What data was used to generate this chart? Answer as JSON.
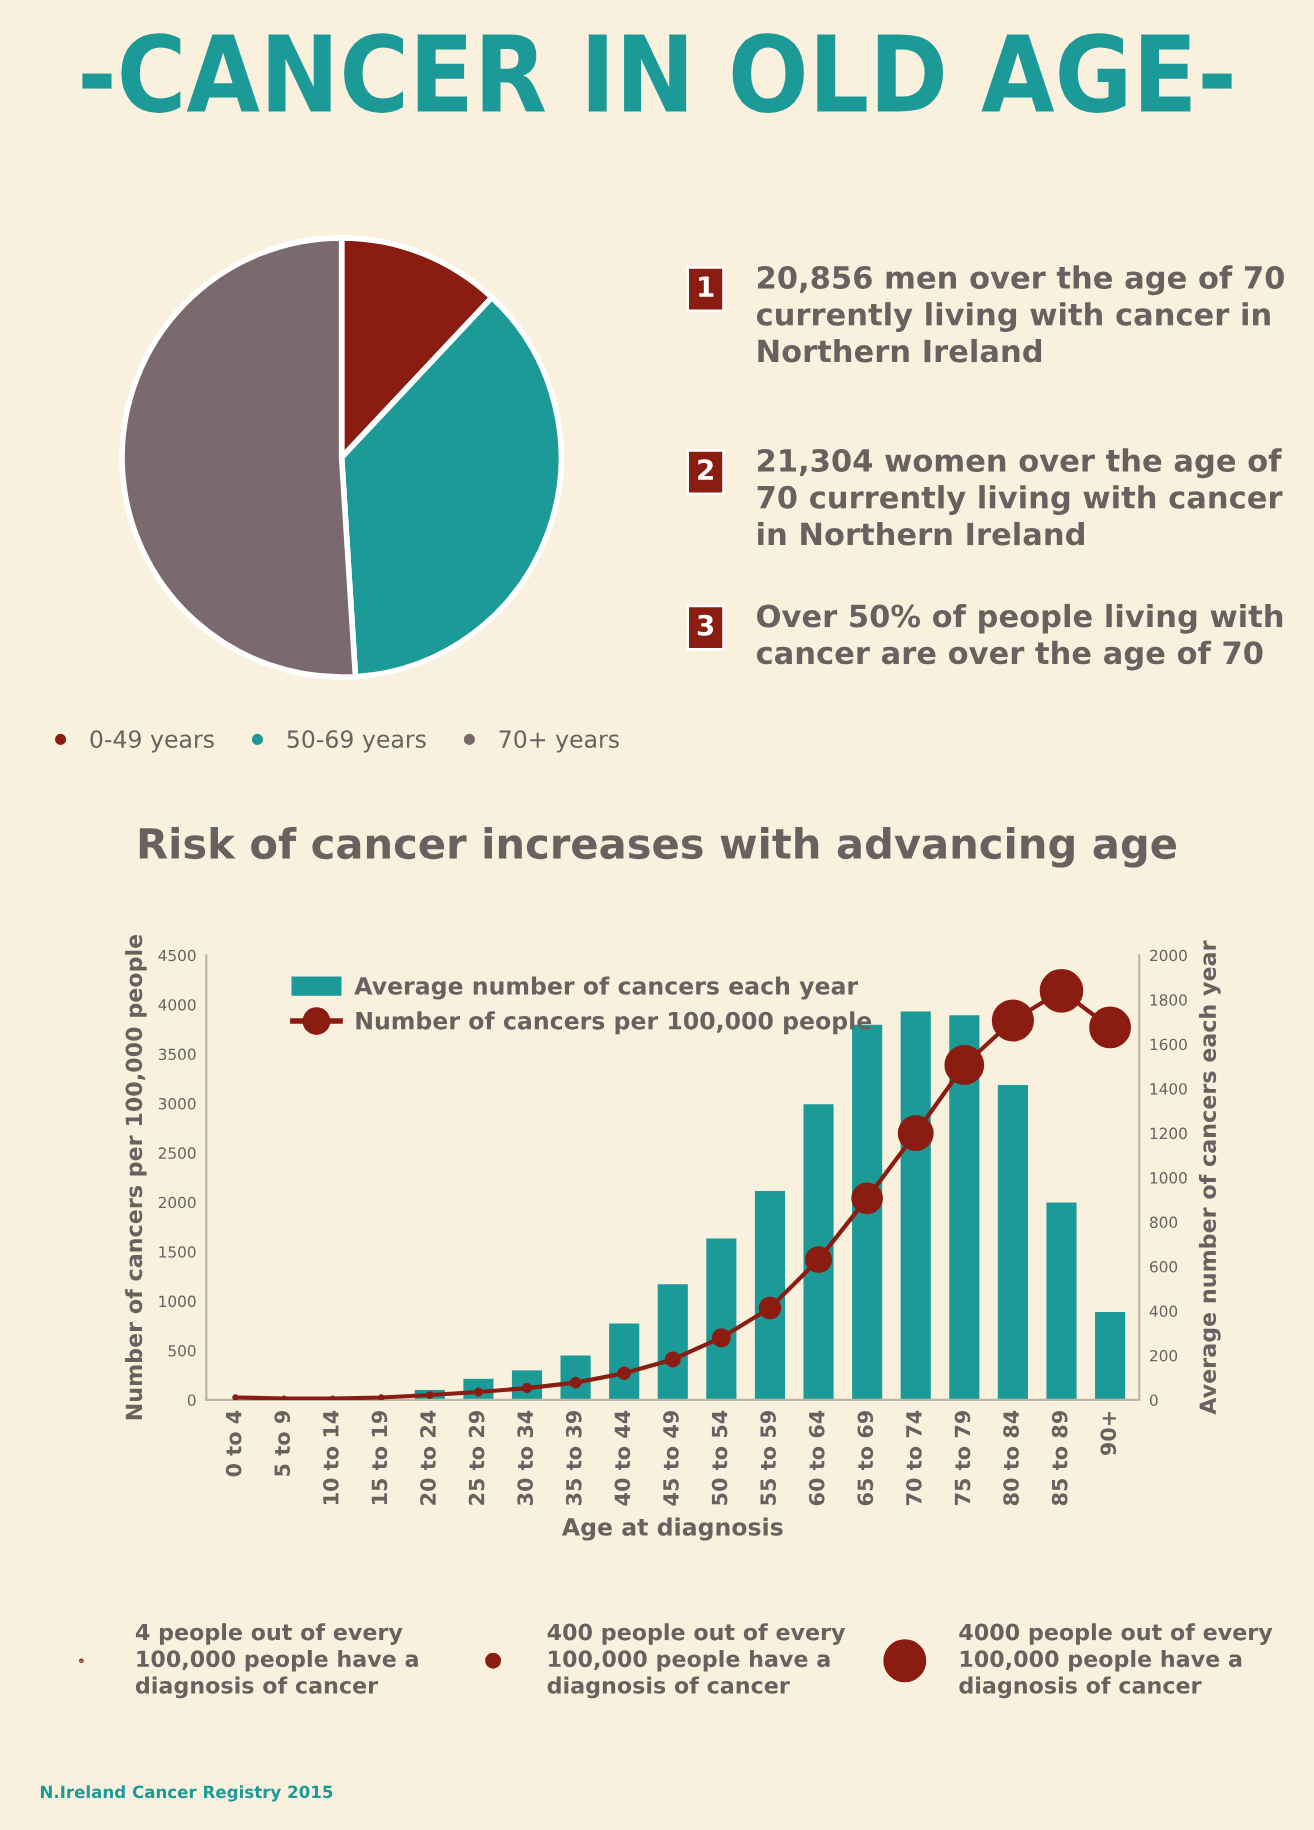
{
  "chart_data": [
    {
      "type": "pie",
      "title": "-CANCER IN OLD AGE-",
      "categories": [
        "0-49 years",
        "50-69 years",
        "70+ years"
      ],
      "values": [
        12,
        37,
        51
      ],
      "colors": [
        "#8b1c12",
        "#1b9a97",
        "#7b6a6d"
      ],
      "legend": "bottom",
      "annotations": [
        "1 20,856 men over the age of 70 currently living with cancer in Northern Ireland",
        "2 21,304 women over the age of 70 currently living with cancer in Northern Ireland",
        "3 Over 50% of people living with cancer are over the age of 70"
      ]
    },
    {
      "type": "bar",
      "title": "Risk of cancer increases with advancing age",
      "xlabel": "Age at diagnosis",
      "ylabel": "Number of cancers per 100,000 people",
      "y2label": "Average number of cancers each year",
      "categories": [
        "0 to 4",
        "5 to 9",
        "10 to 14",
        "15 to 19",
        "20 to 24",
        "25 to 29",
        "30 to 34",
        "35 to 39",
        "40 to 44",
        "45 to 49",
        "50 to 54",
        "55 to 59",
        "60 to 64",
        "65 to 69",
        "70 to 74",
        "75 to 79",
        "80 to 84",
        "85 to 89",
        "90+"
      ],
      "series": [
        {
          "name": "Average number of cancers each year",
          "type": "bar",
          "axis": "y2",
          "color": "#1b9a97",
          "values": [
            null,
            null,
            null,
            null,
            45,
            95,
            133,
            200,
            344,
            520,
            726,
            940,
            1330,
            1688,
            1747,
            1730,
            1417,
            888,
            396
          ]
        },
        {
          "type": "line",
          "axis": "y",
          "color": "#8b1c12",
          "line_style": "solid",
          "values": [
            25,
            15,
            15,
            25,
            50,
            80,
            120,
            175,
            270,
            410,
            630,
            930,
            1420,
            2040,
            2700,
            3390,
            3840,
            4140,
            3770
          ]
        },
        {
          "name": "Number of cancers per 100,000 people",
          "type": "bubble",
          "axis": "y",
          "color": "#8b1c12",
          "values": [
            25,
            15,
            15,
            25,
            50,
            80,
            120,
            175,
            270,
            410,
            630,
            930,
            1420,
            2040,
            2700,
            3390,
            3840,
            4140,
            3770
          ],
          "sizes": [
            25,
            15,
            15,
            25,
            50,
            80,
            120,
            175,
            270,
            410,
            630,
            930,
            1420,
            2040,
            2700,
            3390,
            3840,
            4140,
            3770
          ]
        }
      ],
      "size_legend": [
        {
          "value": 4,
          "label": "4 people out of every\n100,000 people have a\ndiagnosis of cancer"
        },
        {
          "value": 400,
          "label": "400 people out of every\n100,000 people have a\ndiagnosis of cancer"
        },
        {
          "value": 4000,
          "label": "4000 people out of every\n100,000 people have a\ndiagnosis of cancer"
        }
      ],
      "ylim": [
        0,
        4500
      ],
      "yticks": [
        0,
        500,
        1000,
        1500,
        2000,
        2500,
        3000,
        3500,
        4000,
        4500
      ],
      "y2lim": [
        0,
        2000
      ],
      "y2ticks": [
        0,
        200,
        400,
        600,
        800,
        1000,
        1200,
        1400,
        1600,
        1800,
        2000
      ],
      "legend": "top left",
      "grid": false,
      "annotations": [
        "N.Ireland Cancer Registry 2015"
      ]
    }
  ]
}
